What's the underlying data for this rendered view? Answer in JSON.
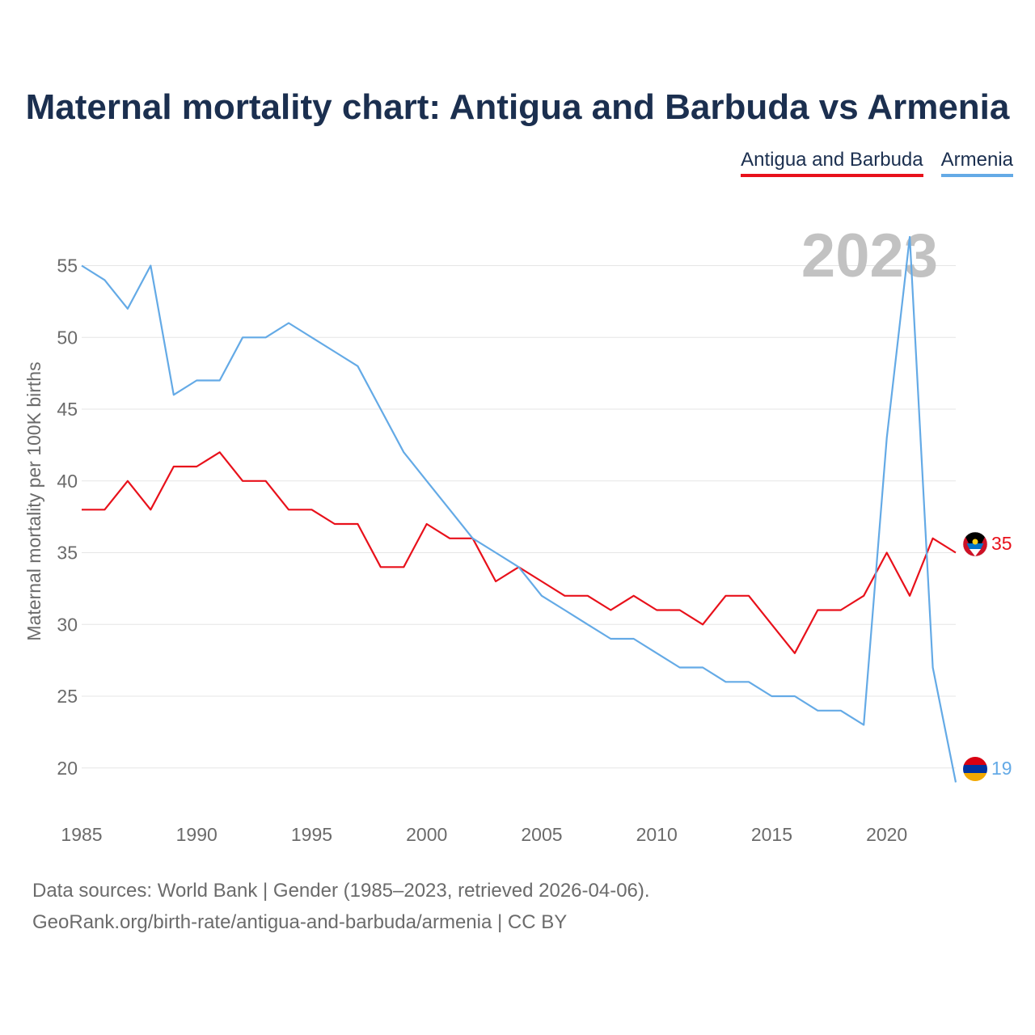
{
  "title": "Maternal mortality chart: Antigua and Barbuda vs Armenia",
  "year_label": "2023",
  "footer": {
    "line1": "Data sources: World Bank | Gender (1985–2023, retrieved 2026-04-06).",
    "line2": "GeoRank.org/birth-rate/antigua-and-barbuda/armenia | CC BY"
  },
  "colors": {
    "antigua": "#e8111b",
    "armenia": "#64aae6",
    "grid": "#e6e6e6",
    "axis_text": "#6b6b6b",
    "title": "#1b2f4f"
  },
  "chart_data": {
    "type": "line",
    "title": "Maternal mortality chart: Antigua and Barbuda vs Armenia",
    "xlabel": "",
    "ylabel": "Maternal mortality per 100K births",
    "xlim": [
      1985,
      2023
    ],
    "ylim": [
      17,
      57
    ],
    "x_ticks": [
      1985,
      1990,
      1995,
      2000,
      2005,
      2010,
      2015,
      2020
    ],
    "y_ticks": [
      20,
      25,
      30,
      35,
      40,
      45,
      50,
      55
    ],
    "legend_position": "top-right",
    "x": [
      1985,
      1986,
      1987,
      1988,
      1989,
      1990,
      1991,
      1992,
      1993,
      1994,
      1995,
      1996,
      1997,
      1998,
      1999,
      2000,
      2001,
      2002,
      2003,
      2004,
      2005,
      2006,
      2007,
      2008,
      2009,
      2010,
      2011,
      2012,
      2013,
      2014,
      2015,
      2016,
      2017,
      2018,
      2019,
      2020,
      2021,
      2022,
      2023
    ],
    "series": [
      {
        "name": "Antigua and Barbuda",
        "color": "#e8111b",
        "end_label": "35",
        "values": [
          38,
          38,
          40,
          38,
          41,
          41,
          42,
          40,
          40,
          38,
          38,
          37,
          37,
          34,
          34,
          37,
          36,
          36,
          33,
          34,
          33,
          32,
          32,
          31,
          32,
          31,
          31,
          30,
          32,
          32,
          30,
          28,
          31,
          31,
          32,
          35,
          32,
          36,
          35
        ]
      },
      {
        "name": "Armenia",
        "color": "#64aae6",
        "end_label": "19",
        "values": [
          55,
          54,
          52,
          55,
          46,
          47,
          47,
          50,
          50,
          51,
          50,
          49,
          48,
          45,
          42,
          40,
          38,
          36,
          35,
          34,
          32,
          31,
          30,
          29,
          29,
          28,
          27,
          27,
          26,
          26,
          25,
          25,
          24,
          24,
          23,
          43,
          57,
          27,
          19
        ]
      }
    ]
  }
}
